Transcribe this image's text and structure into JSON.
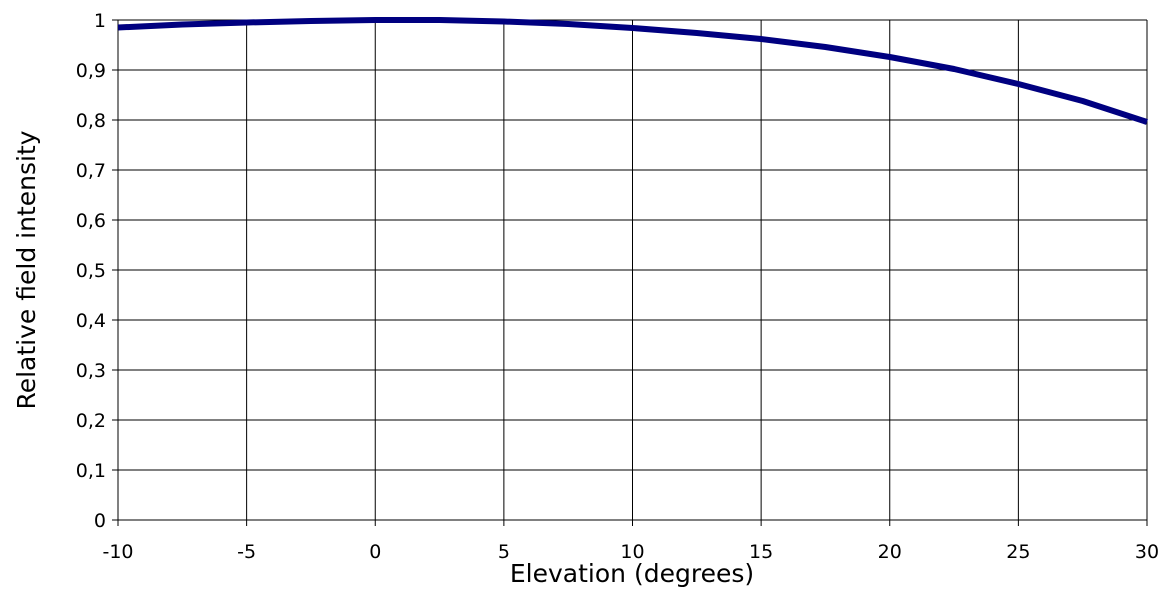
{
  "chart_data": {
    "type": "line",
    "title": "",
    "xlabel": "Elevation (degrees)",
    "ylabel": "Relative field intensity",
    "xlim": [
      -10,
      30
    ],
    "ylim": [
      0,
      1
    ],
    "x_ticks": [
      -10,
      -5,
      0,
      5,
      10,
      15,
      20,
      25,
      30
    ],
    "x_tick_labels": [
      "-10",
      "-5",
      "0",
      "5",
      "10",
      "15",
      "20",
      "25",
      "30"
    ],
    "y_ticks": [
      0,
      0.1,
      0.2,
      0.3,
      0.4,
      0.5,
      0.6,
      0.7,
      0.8,
      0.9,
      1
    ],
    "y_tick_labels": [
      "0",
      "0,1",
      "0,2",
      "0,3",
      "0,4",
      "0,5",
      "0,6",
      "0,7",
      "0,8",
      "0,9",
      "1"
    ],
    "grid": true,
    "legend": false,
    "series": [
      {
        "color": "#000080",
        "x": [
          -10,
          -7.5,
          -5,
          -2.5,
          0,
          2.5,
          5,
          7.5,
          10,
          12.5,
          15,
          17.5,
          20,
          22.5,
          25,
          27.5,
          30
        ],
        "values": [
          0.985,
          0.991,
          0.995,
          0.998,
          1.0,
          1.0,
          0.997,
          0.992,
          0.984,
          0.974,
          0.962,
          0.946,
          0.926,
          0.902,
          0.872,
          0.838,
          0.796
        ]
      }
    ]
  }
}
